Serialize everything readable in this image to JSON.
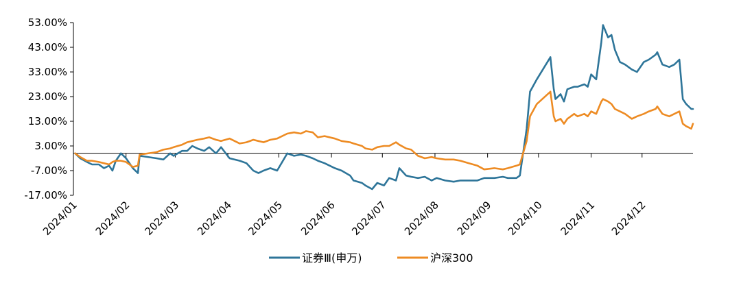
{
  "chart_data": {
    "type": "line",
    "title": "",
    "xlabel": "",
    "ylabel": "",
    "ylim": [
      -17,
      53
    ],
    "yticks": [
      "53.00%",
      "43.00%",
      "33.00%",
      "23.00%",
      "13.00%",
      "3.00%",
      "-7.00%",
      "-17.00%"
    ],
    "ytick_values": [
      53,
      43,
      33,
      23,
      13,
      3,
      -7,
      -17
    ],
    "xticks": [
      "2024/01",
      "2024/02",
      "2024/03",
      "2024/04",
      "2024/05",
      "2024/06",
      "2024/07",
      "2024/08",
      "2024/09",
      "2024/10",
      "2024/11",
      "2024/12"
    ],
    "xtick_dates": [
      "2024-01-01",
      "2024-02-01",
      "2024-03-01",
      "2024-04-01",
      "2024-05-01",
      "2024-06-01",
      "2024-07-01",
      "2024-08-01",
      "2024-09-01",
      "2024-10-01",
      "2024-11-01",
      "2024-12-01"
    ],
    "xlim": [
      "2024-01-01",
      "2024-12-31"
    ],
    "legend_position": "bottom",
    "series": [
      {
        "name": "证券Ⅲ(申万)",
        "color": "#2e7599",
        "points": [
          [
            "2024-01-02",
            0
          ],
          [
            "2024-01-05",
            -2
          ],
          [
            "2024-01-09",
            -3.5
          ],
          [
            "2024-01-12",
            -4.5
          ],
          [
            "2024-01-16",
            -4.5
          ],
          [
            "2024-01-19",
            -6
          ],
          [
            "2024-01-22",
            -5
          ],
          [
            "2024-01-24",
            -7
          ],
          [
            "2024-01-26",
            -3
          ],
          [
            "2024-01-29",
            0
          ],
          [
            "2024-02-01",
            -2
          ],
          [
            "2024-02-05",
            -6
          ],
          [
            "2024-02-08",
            -8
          ],
          [
            "2024-02-09",
            -1
          ],
          [
            "2024-02-19",
            -2
          ],
          [
            "2024-02-23",
            -2.5
          ],
          [
            "2024-02-27",
            0
          ],
          [
            "2024-02-29",
            -1
          ],
          [
            "2024-03-05",
            1
          ],
          [
            "2024-03-08",
            1
          ],
          [
            "2024-03-11",
            3
          ],
          [
            "2024-03-14",
            2
          ],
          [
            "2024-03-18",
            1
          ],
          [
            "2024-03-21",
            2.5
          ],
          [
            "2024-03-25",
            0
          ],
          [
            "2024-03-28",
            2.5
          ],
          [
            "2024-04-02",
            -2
          ],
          [
            "2024-04-08",
            -3
          ],
          [
            "2024-04-12",
            -4
          ],
          [
            "2024-04-16",
            -7
          ],
          [
            "2024-04-19",
            -8
          ],
          [
            "2024-04-22",
            -7
          ],
          [
            "2024-04-26",
            -6
          ],
          [
            "2024-04-30",
            -7
          ],
          [
            "2024-05-06",
            0
          ],
          [
            "2024-05-10",
            -1
          ],
          [
            "2024-05-14",
            -0.5
          ],
          [
            "2024-05-17",
            -1
          ],
          [
            "2024-05-21",
            -2
          ],
          [
            "2024-05-24",
            -3
          ],
          [
            "2024-05-28",
            -4
          ],
          [
            "2024-06-03",
            -6
          ],
          [
            "2024-06-07",
            -7
          ],
          [
            "2024-06-12",
            -9
          ],
          [
            "2024-06-14",
            -11
          ],
          [
            "2024-06-19",
            -12
          ],
          [
            "2024-06-21",
            -13
          ],
          [
            "2024-06-25",
            -14.5
          ],
          [
            "2024-06-28",
            -12
          ],
          [
            "2024-07-02",
            -13
          ],
          [
            "2024-07-05",
            -10
          ],
          [
            "2024-07-09",
            -11
          ],
          [
            "2024-07-11",
            -6
          ],
          [
            "2024-07-15",
            -9
          ],
          [
            "2024-07-18",
            -9.5
          ],
          [
            "2024-07-22",
            -10
          ],
          [
            "2024-07-26",
            -9.5
          ],
          [
            "2024-07-30",
            -11
          ],
          [
            "2024-08-02",
            -10
          ],
          [
            "2024-08-07",
            -11
          ],
          [
            "2024-08-12",
            -11.5
          ],
          [
            "2024-08-16",
            -11
          ],
          [
            "2024-08-21",
            -11
          ],
          [
            "2024-08-26",
            -11
          ],
          [
            "2024-08-30",
            -10
          ],
          [
            "2024-09-05",
            -10
          ],
          [
            "2024-09-10",
            -9.5
          ],
          [
            "2024-09-13",
            -10
          ],
          [
            "2024-09-18",
            -10
          ],
          [
            "2024-09-20",
            -9
          ],
          [
            "2024-09-24",
            10
          ],
          [
            "2024-09-26",
            25
          ],
          [
            "2024-09-30",
            30
          ],
          [
            "2024-10-08",
            39
          ],
          [
            "2024-10-10",
            26
          ],
          [
            "2024-10-11",
            22
          ],
          [
            "2024-10-14",
            24
          ],
          [
            "2024-10-16",
            21
          ],
          [
            "2024-10-18",
            26
          ],
          [
            "2024-10-22",
            27
          ],
          [
            "2024-10-24",
            27
          ],
          [
            "2024-10-28",
            28
          ],
          [
            "2024-10-30",
            27
          ],
          [
            "2024-11-01",
            32
          ],
          [
            "2024-11-04",
            30
          ],
          [
            "2024-11-07",
            45
          ],
          [
            "2024-11-08",
            52
          ],
          [
            "2024-11-11",
            47
          ],
          [
            "2024-11-13",
            48
          ],
          [
            "2024-11-15",
            42
          ],
          [
            "2024-11-18",
            37
          ],
          [
            "2024-11-21",
            36
          ],
          [
            "2024-11-25",
            34
          ],
          [
            "2024-11-28",
            33
          ],
          [
            "2024-12-02",
            37
          ],
          [
            "2024-12-05",
            38
          ],
          [
            "2024-12-09",
            40
          ],
          [
            "2024-12-10",
            41
          ],
          [
            "2024-12-13",
            36
          ],
          [
            "2024-12-17",
            35
          ],
          [
            "2024-12-20",
            36
          ],
          [
            "2024-12-23",
            38
          ],
          [
            "2024-12-25",
            22
          ],
          [
            "2024-12-27",
            20
          ],
          [
            "2024-12-30",
            18
          ],
          [
            "2024-12-31",
            18
          ]
        ]
      },
      {
        "name": "沪深300",
        "color": "#ed8b23",
        "points": [
          [
            "2024-01-02",
            0
          ],
          [
            "2024-01-05",
            -1.5
          ],
          [
            "2024-01-09",
            -3
          ],
          [
            "2024-01-12",
            -3
          ],
          [
            "2024-01-16",
            -3.5
          ],
          [
            "2024-01-19",
            -4
          ],
          [
            "2024-01-22",
            -4.5
          ],
          [
            "2024-01-24",
            -3.5
          ],
          [
            "2024-01-26",
            -3
          ],
          [
            "2024-01-29",
            -3
          ],
          [
            "2024-02-01",
            -3.5
          ],
          [
            "2024-02-05",
            -5.5
          ],
          [
            "2024-02-08",
            -5
          ],
          [
            "2024-02-09",
            -0.5
          ],
          [
            "2024-02-19",
            0.5
          ],
          [
            "2024-02-23",
            1.5
          ],
          [
            "2024-02-27",
            2
          ],
          [
            "2024-02-29",
            2.5
          ],
          [
            "2024-03-05",
            3.5
          ],
          [
            "2024-03-08",
            4.5
          ],
          [
            "2024-03-11",
            5
          ],
          [
            "2024-03-14",
            5.5
          ],
          [
            "2024-03-18",
            6
          ],
          [
            "2024-03-21",
            6.5
          ],
          [
            "2024-03-25",
            5.5
          ],
          [
            "2024-03-28",
            5
          ],
          [
            "2024-04-02",
            6
          ],
          [
            "2024-04-08",
            4
          ],
          [
            "2024-04-12",
            4.5
          ],
          [
            "2024-04-16",
            5.5
          ],
          [
            "2024-04-19",
            5
          ],
          [
            "2024-04-22",
            4.5
          ],
          [
            "2024-04-26",
            5.5
          ],
          [
            "2024-04-30",
            6
          ],
          [
            "2024-05-06",
            8
          ],
          [
            "2024-05-10",
            8.5
          ],
          [
            "2024-05-14",
            8
          ],
          [
            "2024-05-17",
            9
          ],
          [
            "2024-05-21",
            8.5
          ],
          [
            "2024-05-24",
            6.5
          ],
          [
            "2024-05-28",
            7
          ],
          [
            "2024-06-03",
            6
          ],
          [
            "2024-06-07",
            5
          ],
          [
            "2024-06-12",
            4.5
          ],
          [
            "2024-06-14",
            4
          ],
          [
            "2024-06-19",
            3
          ],
          [
            "2024-06-21",
            2
          ],
          [
            "2024-06-25",
            1.5
          ],
          [
            "2024-06-28",
            2.5
          ],
          [
            "2024-07-02",
            3
          ],
          [
            "2024-07-05",
            3
          ],
          [
            "2024-07-09",
            4.5
          ],
          [
            "2024-07-11",
            3.5
          ],
          [
            "2024-07-15",
            2
          ],
          [
            "2024-07-18",
            1.5
          ],
          [
            "2024-07-22",
            -1
          ],
          [
            "2024-07-26",
            -2
          ],
          [
            "2024-07-30",
            -1.5
          ],
          [
            "2024-08-02",
            -2
          ],
          [
            "2024-08-07",
            -2.5
          ],
          [
            "2024-08-12",
            -2.5
          ],
          [
            "2024-08-16",
            -3
          ],
          [
            "2024-08-21",
            -4
          ],
          [
            "2024-08-26",
            -5
          ],
          [
            "2024-08-30",
            -6.5
          ],
          [
            "2024-09-05",
            -6
          ],
          [
            "2024-09-10",
            -6.5
          ],
          [
            "2024-09-13",
            -6
          ],
          [
            "2024-09-18",
            -5
          ],
          [
            "2024-09-20",
            -4.5
          ],
          [
            "2024-09-24",
            5
          ],
          [
            "2024-09-26",
            15
          ],
          [
            "2024-09-30",
            20
          ],
          [
            "2024-10-08",
            25
          ],
          [
            "2024-10-10",
            15
          ],
          [
            "2024-10-11",
            13
          ],
          [
            "2024-10-14",
            14
          ],
          [
            "2024-10-16",
            12
          ],
          [
            "2024-10-18",
            14
          ],
          [
            "2024-10-22",
            16
          ],
          [
            "2024-10-24",
            15
          ],
          [
            "2024-10-28",
            16
          ],
          [
            "2024-10-30",
            15
          ],
          [
            "2024-11-01",
            17
          ],
          [
            "2024-11-04",
            16
          ],
          [
            "2024-11-07",
            21
          ],
          [
            "2024-11-08",
            22
          ],
          [
            "2024-11-11",
            21
          ],
          [
            "2024-11-13",
            20
          ],
          [
            "2024-11-15",
            18
          ],
          [
            "2024-11-18",
            17
          ],
          [
            "2024-11-21",
            16
          ],
          [
            "2024-11-25",
            14
          ],
          [
            "2024-11-28",
            15
          ],
          [
            "2024-12-02",
            16
          ],
          [
            "2024-12-05",
            17
          ],
          [
            "2024-12-09",
            18
          ],
          [
            "2024-12-10",
            19
          ],
          [
            "2024-12-13",
            16
          ],
          [
            "2024-12-17",
            15
          ],
          [
            "2024-12-20",
            16
          ],
          [
            "2024-12-23",
            17
          ],
          [
            "2024-12-25",
            12
          ],
          [
            "2024-12-27",
            11
          ],
          [
            "2024-12-30",
            10
          ],
          [
            "2024-12-31",
            12
          ]
        ]
      }
    ]
  }
}
